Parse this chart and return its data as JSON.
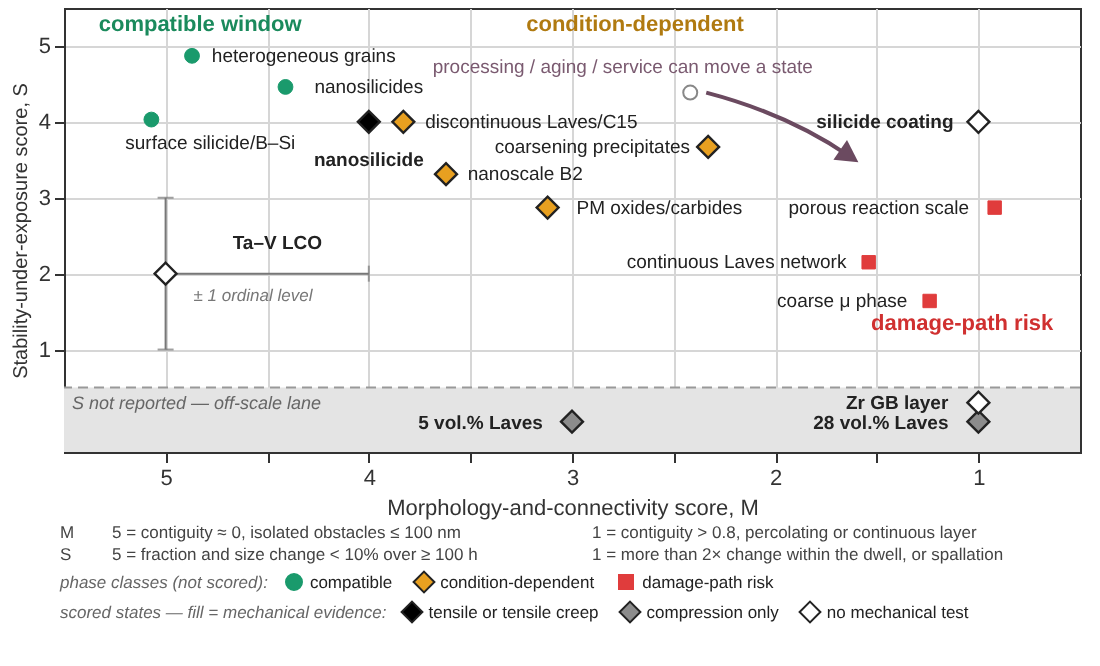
{
  "chart_data": {
    "type": "scatter",
    "xlabel": "Morphology-and-connectivity score,  M",
    "ylabel": "Stability-under-exposure score,  S",
    "xlim": [
      5.5,
      0.5
    ],
    "xticks": [
      5,
      {
        "value": 4.5,
        "label": null
      },
      4,
      {
        "value": 3.5,
        "label": null
      },
      3,
      {
        "value": 2.5,
        "label": null
      },
      2,
      {
        "value": 1.5,
        "label": null
      },
      1
    ],
    "ylim": [
      -0.35,
      5.5
    ],
    "yticks": [
      1,
      2,
      3,
      4,
      5
    ],
    "grid": true,
    "legend": "bottom",
    "legend_title": "phase classes (not scored):",
    "series": [
      {
        "name": "compatible",
        "color": "#1a9a6c",
        "marker": "circle",
        "x": [
          4.87,
          4.41,
          5.07
        ],
        "values": [
          4.87,
          4.46,
          4.03
        ]
      },
      {
        "name": "condition-dependent",
        "color": "#e8a020",
        "marker": "diamond",
        "x": [
          3.83,
          2.33,
          3.62,
          3.12
        ],
        "values": [
          4.0,
          3.67,
          3.31,
          2.87
        ]
      },
      {
        "name": "damage-path risk",
        "color": "#e03c3c",
        "marker": "square",
        "x": [
          0.92,
          1.54,
          1.24
        ],
        "values": [
          2.87,
          2.15,
          1.64
        ]
      },
      {
        "name": "tensile or tensile creep",
        "color": "#000000",
        "marker": "diamond",
        "x": [
          4.0
        ],
        "values": [
          4.0
        ]
      },
      {
        "name": "compression only",
        "color": "#8c8c8c",
        "marker": "diamond",
        "x": [
          3.0,
          1.0
        ],
        "values": [
          0.05,
          0.05
        ]
      },
      {
        "name": "no mechanical test",
        "color": "#ffffff",
        "marker": "diamond",
        "x": [
          5.0,
          1.0,
          1.0
        ],
        "values": [
          2.0,
          4.0,
          0.3
        ],
        "errors": [
          1,
          null,
          null
        ],
        "xerrors": [
          [
            4,
            5
          ],
          null,
          null
        ]
      }
    ],
    "ref_lines": [
      {
        "axis": "y",
        "value": 0.5,
        "color": "#999999",
        "line_style": "dashed"
      }
    ],
    "bands": [
      {
        "axis": "y",
        "from": -0.35,
        "to": 0.5,
        "label": "S not reported — off-scale lane",
        "color": "#e4e4e4"
      }
    ],
    "annotations": [
      "compatible window",
      "condition-dependent",
      "damage-path risk",
      "processing / aging / service can move a state",
      "± 1 ordinal level",
      "heterogeneous grains",
      "nanosilicides",
      "surface silicide/B–Si",
      "nanosilicide",
      "discontinuous Laves/C15",
      "coarsening precipitates",
      "nanoscale B2",
      "PM oxides/carbides",
      "porous reaction scale",
      "continuous Laves network",
      "coarse μ phase",
      "silicide coating",
      "Ta–V LCO",
      "5 vol.% Laves",
      "Zr GB layer",
      "28 vol.% Laves",
      "M",
      "5 = contiguity ≈ 0, isolated obstacles ≤ 100 nm",
      "1 = contiguity > 0.8, percolating or continuous layer",
      "S",
      "5 = fraction and size change < 10% over ≥ 100 h",
      "1 = more than 2× change within the dwell, or spallation",
      "scored states — fill = mechanical evidence:"
    ]
  }
}
